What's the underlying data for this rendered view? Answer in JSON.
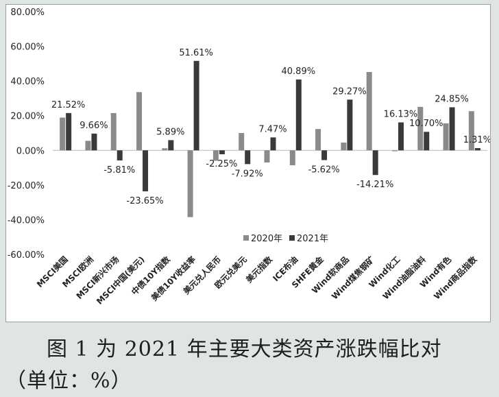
{
  "chart_data": {
    "type": "bar",
    "categories": [
      "MSCI美国",
      "MSCI欧洲",
      "MSCI新兴市场",
      "MSCI中国(美元)",
      "中债10Y指数",
      "美债10Y收益率",
      "美元兑人民币",
      "欧元兑美元",
      "美元指数",
      "ICE布油",
      "SHFE黄金",
      "Wind软商品",
      "Wind煤焦钢矿",
      "Wind化工",
      "Wind油脂油料",
      "Wind有色",
      "Wind商品指数"
    ],
    "series": [
      {
        "name": "2020年",
        "color": "#8a8a8a",
        "values": [
          18.9,
          5.5,
          21.5,
          33.6,
          1.2,
          -38.5,
          -6.0,
          10.0,
          -7.0,
          -8.6,
          12.3,
          4.5,
          45.2,
          -0.5,
          25.1,
          15.6,
          22.6
        ]
      },
      {
        "name": "2021年",
        "color": "#3a3a3a",
        "values": [
          21.52,
          9.66,
          -5.81,
          -23.65,
          5.89,
          51.61,
          -2.25,
          -7.92,
          7.47,
          40.89,
          -5.62,
          29.27,
          -14.21,
          16.13,
          10.7,
          24.85,
          1.31
        ]
      }
    ],
    "data_labels": [
      "21.52%",
      "9.66%",
      "-5.81%",
      "-23.65%",
      "5.89%",
      "51.61%",
      "-2.25%",
      "-7.92%",
      "7.47%",
      "40.89%",
      "-5.62%",
      "29.27%",
      "-14.21%",
      "16.13%",
      "10.70%",
      "24.85%",
      "1.31%"
    ],
    "ylim": [
      -60,
      80
    ],
    "yticks": [
      "80.00%",
      "60.00%",
      "40.00%",
      "20.00%",
      "0.00%",
      "-20.00%",
      "-40.00%",
      "-60.00%"
    ],
    "ytick_values": [
      80,
      60,
      40,
      20,
      0,
      -20,
      -40,
      -60
    ],
    "grid": false,
    "legend": "inside-bottom-center",
    "xlabel": "",
    "ylabel": ""
  },
  "caption": {
    "line1": "图 1 为 2021 年主要大类资产涨跌幅比对",
    "line2": "（单位：%）"
  }
}
